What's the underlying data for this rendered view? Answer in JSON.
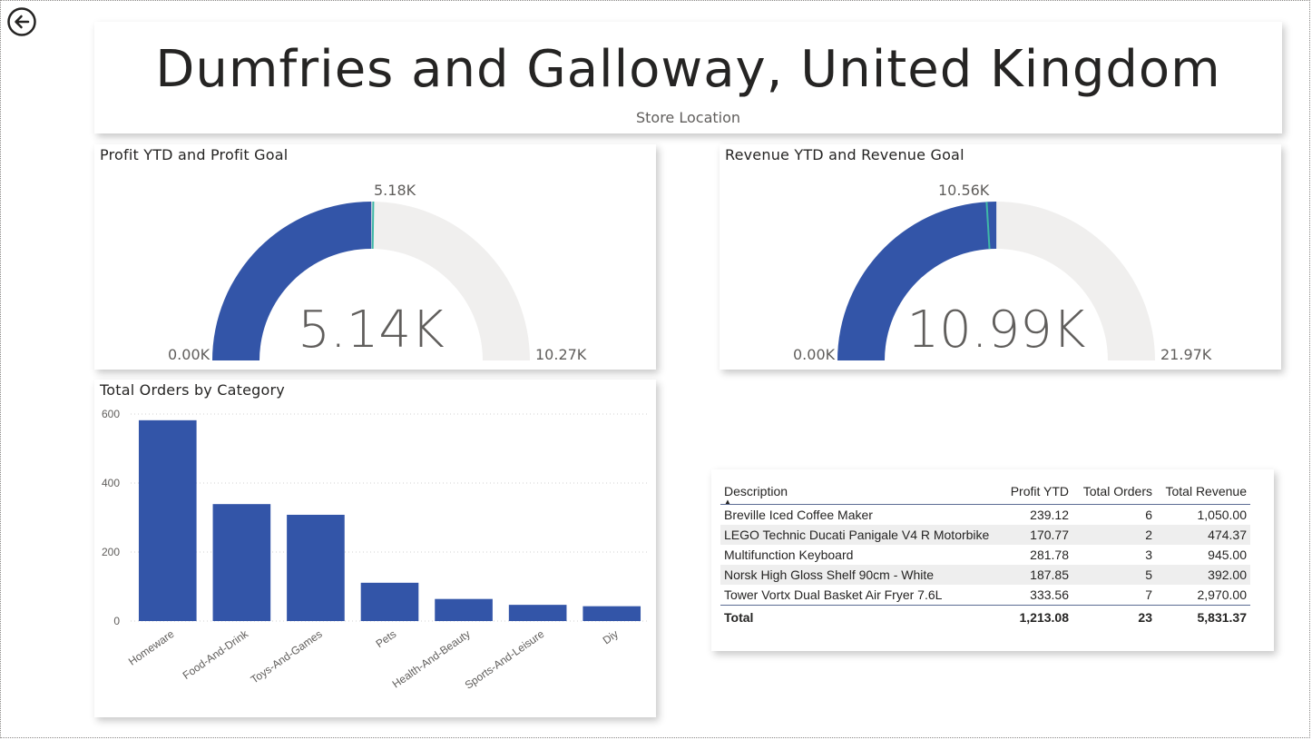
{
  "header": {
    "title": "Dumfries and Galloway, United Kingdom",
    "subtitle": "Store Location"
  },
  "colors": {
    "accent": "#3355a8",
    "track": "#f0efee",
    "target": "#3fb8a7"
  },
  "profit_gauge": {
    "title": "Profit YTD and Profit Goal",
    "value": 5.14,
    "value_label": "5.14K",
    "min": 0,
    "min_label": "0.00K",
    "max": 10.27,
    "max_label": "10.27K",
    "target": 5.18,
    "target_label": "5.18K"
  },
  "revenue_gauge": {
    "title": "Revenue YTD and Revenue Goal",
    "value": 10.99,
    "value_label": "10.99K",
    "min": 0,
    "min_label": "0.00K",
    "max": 21.97,
    "max_label": "21.97K",
    "target": 10.56,
    "target_label": "10.56K"
  },
  "chart_data": {
    "type": "bar",
    "title": "Total Orders by Category",
    "categories": [
      "Homeware",
      "Food-And-Drink",
      "Toys-And-Games",
      "Pets",
      "Health-And-Beauty",
      "Sports-And-Leisure",
      "Diy"
    ],
    "values": [
      582,
      339,
      308,
      111,
      64,
      47,
      43
    ],
    "yticks": [
      "0",
      "200",
      "400",
      "600"
    ],
    "ylim": [
      0,
      600
    ],
    "xlabel": "",
    "ylabel": "",
    "grid": true
  },
  "table": {
    "columns": [
      "Description",
      "Profit YTD",
      "Total Orders",
      "Total Revenue"
    ],
    "rows": [
      [
        "Breville Iced Coffee Maker",
        "239.12",
        "6",
        "1,050.00"
      ],
      [
        "LEGO Technic Ducati Panigale V4 R Motorbike",
        "170.77",
        "2",
        "474.37"
      ],
      [
        "Multifunction Keyboard",
        "281.78",
        "3",
        "945.00"
      ],
      [
        "Norsk High Gloss Shelf 90cm - White",
        "187.85",
        "5",
        "392.00"
      ],
      [
        "Tower Vortx Dual Basket Air Fryer 7.6L",
        "333.56",
        "7",
        "2,970.00"
      ]
    ],
    "total": [
      "Total",
      "1,213.08",
      "23",
      "5,831.37"
    ]
  },
  "icons": {
    "back": "arrow-left-circle"
  }
}
